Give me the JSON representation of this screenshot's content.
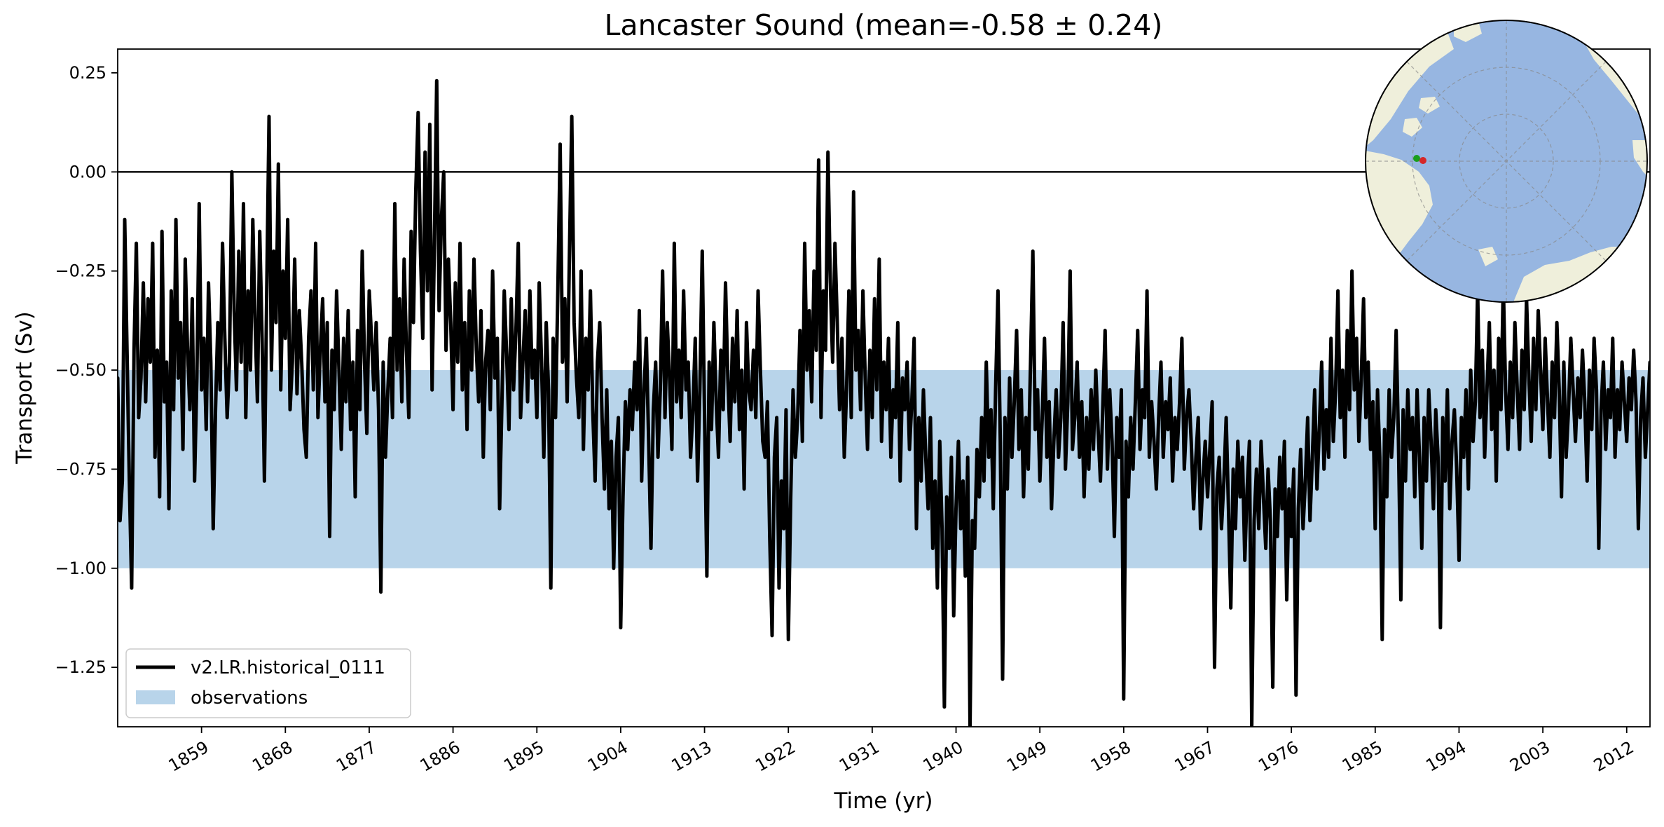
{
  "chart_data": {
    "type": "line",
    "title": "Lancaster Sound (mean=-0.58 ± 0.24)",
    "xlabel": "Time (yr)",
    "ylabel": "Transport (Sv)",
    "xlim": [
      1850,
      2014.5
    ],
    "ylim": [
      -1.4,
      0.31
    ],
    "x_ticks": [
      "1859",
      "1868",
      "1877",
      "1886",
      "1895",
      "1904",
      "1913",
      "1922",
      "1931",
      "1940",
      "1949",
      "1958",
      "1967",
      "1976",
      "1985",
      "1994",
      "2003",
      "2012"
    ],
    "y_ticks": [
      "0.25",
      "0.00",
      "−0.25",
      "−0.50",
      "−0.75",
      "−1.00",
      "−1.25"
    ],
    "grid": false,
    "zero_line": 0.0,
    "observation_band": {
      "name": "observations",
      "low": -1.0,
      "high": -0.5,
      "color": "#b8d4ea"
    },
    "legend_position": "lower-left",
    "series": [
      {
        "name": "v2.LR.historical_0111",
        "color": "#000000",
        "time_start": 1850.0,
        "time_step": 0.25,
        "values": [
          -0.52,
          -0.88,
          -0.78,
          -0.12,
          -0.45,
          -0.78,
          -1.05,
          -0.45,
          -0.18,
          -0.62,
          -0.52,
          -0.28,
          -0.58,
          -0.32,
          -0.48,
          -0.18,
          -0.72,
          -0.45,
          -0.82,
          -0.15,
          -0.58,
          -0.48,
          -0.85,
          -0.3,
          -0.6,
          -0.12,
          -0.52,
          -0.38,
          -0.7,
          -0.22,
          -0.45,
          -0.6,
          -0.32,
          -0.78,
          -0.52,
          -0.08,
          -0.55,
          -0.42,
          -0.65,
          -0.28,
          -0.48,
          -0.9,
          -0.6,
          -0.38,
          -0.55,
          -0.18,
          -0.42,
          -0.62,
          -0.48,
          0.0,
          -0.35,
          -0.55,
          -0.2,
          -0.48,
          -0.08,
          -0.62,
          -0.3,
          -0.5,
          -0.12,
          -0.38,
          -0.58,
          -0.15,
          -0.42,
          -0.78,
          -0.3,
          0.14,
          -0.5,
          -0.2,
          -0.38,
          0.02,
          -0.55,
          -0.25,
          -0.42,
          -0.12,
          -0.6,
          -0.48,
          -0.22,
          -0.56,
          -0.35,
          -0.48,
          -0.65,
          -0.72,
          -0.42,
          -0.3,
          -0.55,
          -0.18,
          -0.62,
          -0.45,
          -0.32,
          -0.58,
          -0.38,
          -0.92,
          -0.45,
          -0.6,
          -0.3,
          -0.5,
          -0.7,
          -0.42,
          -0.58,
          -0.35,
          -0.65,
          -0.48,
          -0.82,
          -0.4,
          -0.6,
          -0.2,
          -0.48,
          -0.66,
          -0.3,
          -0.42,
          -0.55,
          -0.38,
          -0.6,
          -1.06,
          -0.48,
          -0.72,
          -0.55,
          -0.42,
          -0.62,
          -0.08,
          -0.5,
          -0.32,
          -0.58,
          -0.22,
          -0.45,
          -0.62,
          -0.15,
          -0.38,
          -0.05,
          0.15,
          -0.2,
          -0.42,
          0.05,
          -0.3,
          0.12,
          -0.55,
          -0.18,
          0.23,
          -0.35,
          -0.12,
          0.0,
          -0.45,
          -0.22,
          -0.38,
          -0.6,
          -0.28,
          -0.48,
          -0.18,
          -0.55,
          -0.38,
          -0.65,
          -0.3,
          -0.5,
          -0.22,
          -0.45,
          -0.58,
          -0.35,
          -0.72,
          -0.48,
          -0.4,
          -0.6,
          -0.25,
          -0.52,
          -0.42,
          -0.85,
          -0.58,
          -0.3,
          -0.46,
          -0.65,
          -0.32,
          -0.55,
          -0.4,
          -0.18,
          -0.62,
          -0.48,
          -0.35,
          -0.58,
          -0.3,
          -0.52,
          -0.45,
          -0.62,
          -0.28,
          -0.48,
          -0.72,
          -0.38,
          -0.55,
          -1.05,
          -0.42,
          -0.62,
          -0.3,
          0.07,
          -0.48,
          -0.32,
          -0.58,
          -0.2,
          0.14,
          -0.38,
          -0.52,
          -0.62,
          -0.25,
          -0.7,
          -0.42,
          -0.55,
          -0.3,
          -0.6,
          -0.78,
          -0.48,
          -0.38,
          -0.62,
          -0.8,
          -0.55,
          -0.85,
          -0.68,
          -1.0,
          -0.72,
          -0.62,
          -1.15,
          -0.82,
          -0.58,
          -0.7,
          -0.55,
          -0.65,
          -0.48,
          -0.6,
          -0.35,
          -0.78,
          -0.55,
          -0.42,
          -0.68,
          -0.95,
          -0.6,
          -0.48,
          -0.72,
          -0.55,
          -0.25,
          -0.62,
          -0.38,
          -0.52,
          -0.7,
          -0.18,
          -0.58,
          -0.45,
          -0.62,
          -0.3,
          -0.55,
          -0.48,
          -0.72,
          -0.6,
          -0.42,
          -0.78,
          -0.55,
          -0.2,
          -0.62,
          -1.02,
          -0.48,
          -0.65,
          -0.38,
          -0.58,
          -0.72,
          -0.45,
          -0.6,
          -0.28,
          -0.52,
          -0.68,
          -0.42,
          -0.58,
          -0.35,
          -0.65,
          -0.5,
          -0.8,
          -0.38,
          -0.55,
          -0.6,
          -0.45,
          -0.62,
          -0.3,
          -0.5,
          -0.68,
          -0.72,
          -0.58,
          -0.92,
          -1.17,
          -0.72,
          -0.62,
          -1.05,
          -0.78,
          -0.9,
          -0.6,
          -1.18,
          -0.82,
          -0.55,
          -0.72,
          -0.62,
          -0.4,
          -0.68,
          -0.18,
          -0.5,
          -0.35,
          -0.58,
          -0.25,
          -0.45,
          0.03,
          -0.62,
          -0.3,
          -0.45,
          0.05,
          -0.28,
          -0.48,
          -0.18,
          -0.38,
          -0.6,
          -0.42,
          -0.72,
          -0.55,
          -0.3,
          -0.62,
          -0.05,
          -0.5,
          -0.4,
          -0.6,
          -0.3,
          -0.52,
          -0.7,
          -0.45,
          -0.62,
          -0.32,
          -0.55,
          -0.22,
          -0.68,
          -0.48,
          -0.6,
          -0.42,
          -0.72,
          -0.55,
          -0.62,
          -0.38,
          -0.78,
          -0.52,
          -0.6,
          -0.48,
          -0.7,
          -0.58,
          -0.42,
          -0.9,
          -0.62,
          -0.78,
          -0.55,
          -0.72,
          -0.85,
          -0.62,
          -0.95,
          -0.78,
          -1.05,
          -0.68,
          -0.9,
          -1.35,
          -0.82,
          -0.95,
          -0.72,
          -1.12,
          -0.85,
          -0.68,
          -0.9,
          -0.78,
          -1.02,
          -0.72,
          -1.4,
          -0.88,
          -0.95,
          -0.7,
          -0.82,
          -0.62,
          -0.78,
          -0.48,
          -0.72,
          -0.6,
          -0.85,
          -0.55,
          -0.3,
          -0.68,
          -1.28,
          -0.62,
          -0.8,
          -0.52,
          -0.72,
          -0.58,
          -0.4,
          -0.7,
          -0.55,
          -0.82,
          -0.62,
          -0.75,
          -0.48,
          -0.2,
          -0.65,
          -0.55,
          -0.78,
          -0.62,
          -0.42,
          -0.72,
          -0.58,
          -0.85,
          -0.68,
          -0.55,
          -0.72,
          -0.62,
          -0.38,
          -0.75,
          -0.58,
          -0.25,
          -0.7,
          -0.62,
          -0.48,
          -0.72,
          -0.58,
          -0.82,
          -0.62,
          -0.75,
          -0.55,
          -0.7,
          -0.5,
          -0.65,
          -0.78,
          -0.6,
          -0.4,
          -0.75,
          -0.55,
          -0.68,
          -0.92,
          -0.62,
          -0.72,
          -0.55,
          -1.33,
          -0.68,
          -0.82,
          -0.62,
          -0.75,
          -0.58,
          -0.4,
          -0.7,
          -0.55,
          -0.62,
          -0.3,
          -0.72,
          -0.58,
          -0.68,
          -0.8,
          -0.62,
          -0.48,
          -0.72,
          -0.58,
          -0.65,
          -0.52,
          -0.78,
          -0.62,
          -0.7,
          -0.58,
          -0.42,
          -0.75,
          -0.62,
          -0.55,
          -0.68,
          -0.85,
          -0.72,
          -0.62,
          -0.9,
          -0.78,
          -0.68,
          -0.82,
          -0.7,
          -0.58,
          -1.25,
          -0.8,
          -0.72,
          -0.9,
          -0.78,
          -0.62,
          -0.85,
          -1.1,
          -0.75,
          -0.9,
          -0.68,
          -0.82,
          -0.72,
          -0.98,
          -0.8,
          -0.68,
          -1.4,
          -0.88,
          -0.75,
          -0.9,
          -0.68,
          -0.82,
          -0.95,
          -0.75,
          -0.88,
          -1.3,
          -0.8,
          -0.92,
          -0.72,
          -0.85,
          -0.68,
          -1.08,
          -0.8,
          -0.92,
          -0.75,
          -1.32,
          -0.85,
          -0.7,
          -0.9,
          -0.78,
          -0.62,
          -0.88,
          -0.72,
          -0.55,
          -0.8,
          -0.65,
          -0.48,
          -0.75,
          -0.6,
          -0.72,
          -0.42,
          -0.68,
          -0.55,
          -0.3,
          -0.62,
          -0.5,
          -0.72,
          -0.4,
          -0.6,
          -0.25,
          -0.55,
          -0.42,
          -0.68,
          -0.52,
          -0.32,
          -0.62,
          -0.48,
          -0.7,
          -0.58,
          -0.9,
          -0.55,
          -0.72,
          -1.18,
          -0.65,
          -0.82,
          -0.55,
          -0.72,
          -0.62,
          -0.4,
          -0.68,
          -1.08,
          -0.6,
          -0.78,
          -0.55,
          -0.7,
          -0.62,
          -0.82,
          -0.55,
          -0.72,
          -0.95,
          -0.62,
          -0.78,
          -0.55,
          -0.68,
          -0.85,
          -0.6,
          -0.72,
          -1.15,
          -0.62,
          -0.78,
          -0.55,
          -0.85,
          -0.68,
          -0.6,
          -0.75,
          -0.98,
          -0.62,
          -0.72,
          -0.55,
          -0.8,
          -0.5,
          -0.68,
          -0.58,
          -0.3,
          -0.62,
          -0.45,
          -0.72,
          -0.55,
          -0.38,
          -0.65,
          -0.5,
          -0.78,
          -0.42,
          -0.6,
          -0.28,
          -0.55,
          -0.7,
          -0.48,
          -0.62,
          -0.38,
          -0.55,
          -0.7,
          -0.45,
          -0.6,
          -0.32,
          -0.52,
          -0.68,
          -0.42,
          -0.6,
          -0.35,
          -0.5,
          -0.65,
          -0.42,
          -0.58,
          -0.72,
          -0.48,
          -0.62,
          -0.38,
          -0.55,
          -0.82,
          -0.48,
          -0.72,
          -0.6,
          -0.42,
          -0.55,
          -0.68,
          -0.52,
          -0.62,
          -0.45,
          -0.58,
          -0.78,
          -0.5,
          -0.65,
          -0.42,
          -0.55,
          -0.95,
          -0.6,
          -0.48,
          -0.7,
          -0.55,
          -0.62,
          -0.42,
          -0.72,
          -0.55,
          -0.65,
          -0.48,
          -0.58,
          -0.68,
          -0.52,
          -0.6,
          -0.45,
          -0.58,
          -0.9,
          -0.62,
          -0.52,
          -0.72,
          -0.6,
          -0.48
        ]
      }
    ],
    "inset_map": {
      "type": "north-polar-map",
      "ocean_color": "#97b6e1",
      "land_color": "#efefdb",
      "markers": [
        {
          "name": "green",
          "color": "#1a9e1a"
        },
        {
          "name": "red",
          "color": "#d62728"
        }
      ]
    }
  }
}
